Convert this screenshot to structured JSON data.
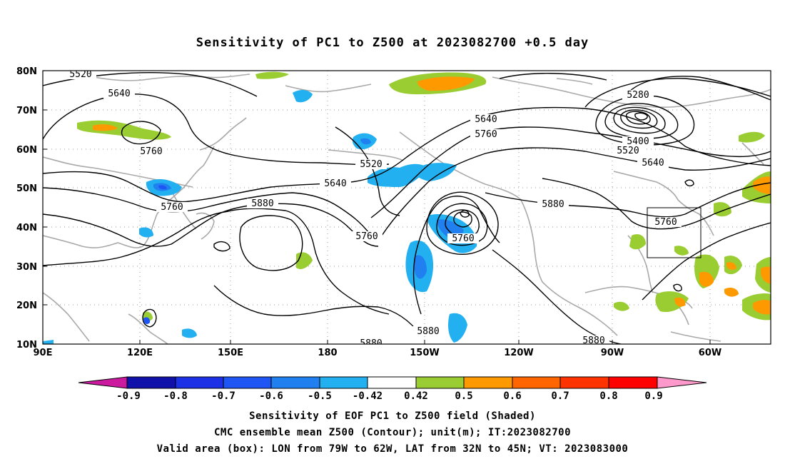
{
  "title": "Sensitivity of PC1 to Z500 at 2023082700 +0.5 day",
  "map": {
    "lat_labels": [
      "80N",
      "70N",
      "60N",
      "50N",
      "40N",
      "30N",
      "20N",
      "10N"
    ],
    "lon_labels": [
      "90E",
      "120E",
      "150E",
      "180",
      "150W",
      "120W",
      "90W",
      "60W"
    ],
    "contour_labels": [
      "5520",
      "5640",
      "5760",
      "5280",
      "5640",
      "5760",
      "5400",
      "5520",
      "5640",
      "5520",
      "5640",
      "5760",
      "5880",
      "5760",
      "5760",
      "5760",
      "5880",
      "5880",
      "5880",
      "5880"
    ],
    "valid_box": {
      "lon_from": "79W",
      "lon_to": "62W",
      "lat_from": "32N",
      "lat_to": "45N"
    }
  },
  "colorbar": {
    "labels": [
      "-0.9",
      "-0.8",
      "-0.7",
      "-0.6",
      "-0.5",
      "-0.42",
      "0.42",
      "0.5",
      "0.6",
      "0.7",
      "0.8",
      "0.9"
    ],
    "colors": [
      "#cc1a9e",
      "#1010aa",
      "#1c30e6",
      "#1f55f5",
      "#2080f0",
      "#22b0f0",
      "#00ccff",
      "#ffffff",
      "#9acd32",
      "#ff9900",
      "#ff6600",
      "#ff3300",
      "#ff0000",
      "#ff99cc"
    ]
  },
  "footer": {
    "line1": "Sensitivity of EOF PC1 to Z500 field (Shaded)",
    "line2": "CMC ensemble mean Z500 (Contour); unit(m); IT:2023082700",
    "line3": "Valid area (box): LON from 79W to 62W, LAT from 32N to 45N; VT: 2023083000"
  }
}
